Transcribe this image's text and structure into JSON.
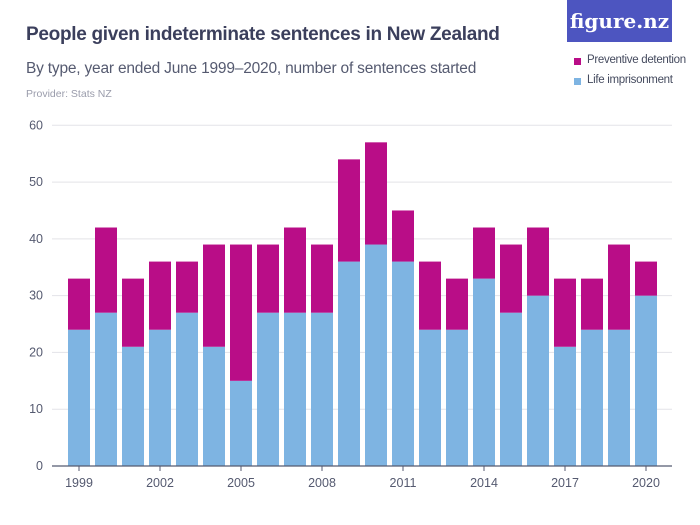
{
  "header": {
    "title": "People given indeterminate sentences in New Zealand",
    "subtitle": "By type, year ended June 1999–2020, number of sentences started",
    "provider": "Provider: Stats NZ",
    "logo": "figure.nz"
  },
  "chart_data": {
    "type": "bar",
    "stacked": true,
    "title": "People given indeterminate sentences in New Zealand",
    "subtitle": "By type, year ended June 1999–2020, number of sentences started",
    "xlabel": "",
    "ylabel": "",
    "ylim": [
      0,
      60
    ],
    "yticks": [
      0,
      10,
      20,
      30,
      40,
      50,
      60
    ],
    "xtick_labels": [
      "1999",
      "2002",
      "2005",
      "2008",
      "2011",
      "2014",
      "2017",
      "2020"
    ],
    "grid": true,
    "legend_position": "top-right",
    "categories": [
      "1999",
      "2000",
      "2001",
      "2002",
      "2003",
      "2004",
      "2005",
      "2006",
      "2007",
      "2008",
      "2009",
      "2010",
      "2011",
      "2012",
      "2013",
      "2014",
      "2015",
      "2016",
      "2017",
      "2018",
      "2019",
      "2020"
    ],
    "series": [
      {
        "name": "Life imprisonment",
        "color": "#7eb4e2",
        "values": [
          24,
          27,
          21,
          24,
          27,
          21,
          15,
          27,
          27,
          27,
          36,
          39,
          36,
          24,
          24,
          33,
          27,
          30,
          21,
          24,
          24,
          30
        ]
      },
      {
        "name": "Preventive detention",
        "color": "#b90d87",
        "values": [
          9,
          15,
          12,
          12,
          9,
          18,
          24,
          12,
          15,
          12,
          18,
          18,
          9,
          12,
          9,
          9,
          12,
          12,
          12,
          9,
          15,
          6
        ]
      }
    ]
  }
}
